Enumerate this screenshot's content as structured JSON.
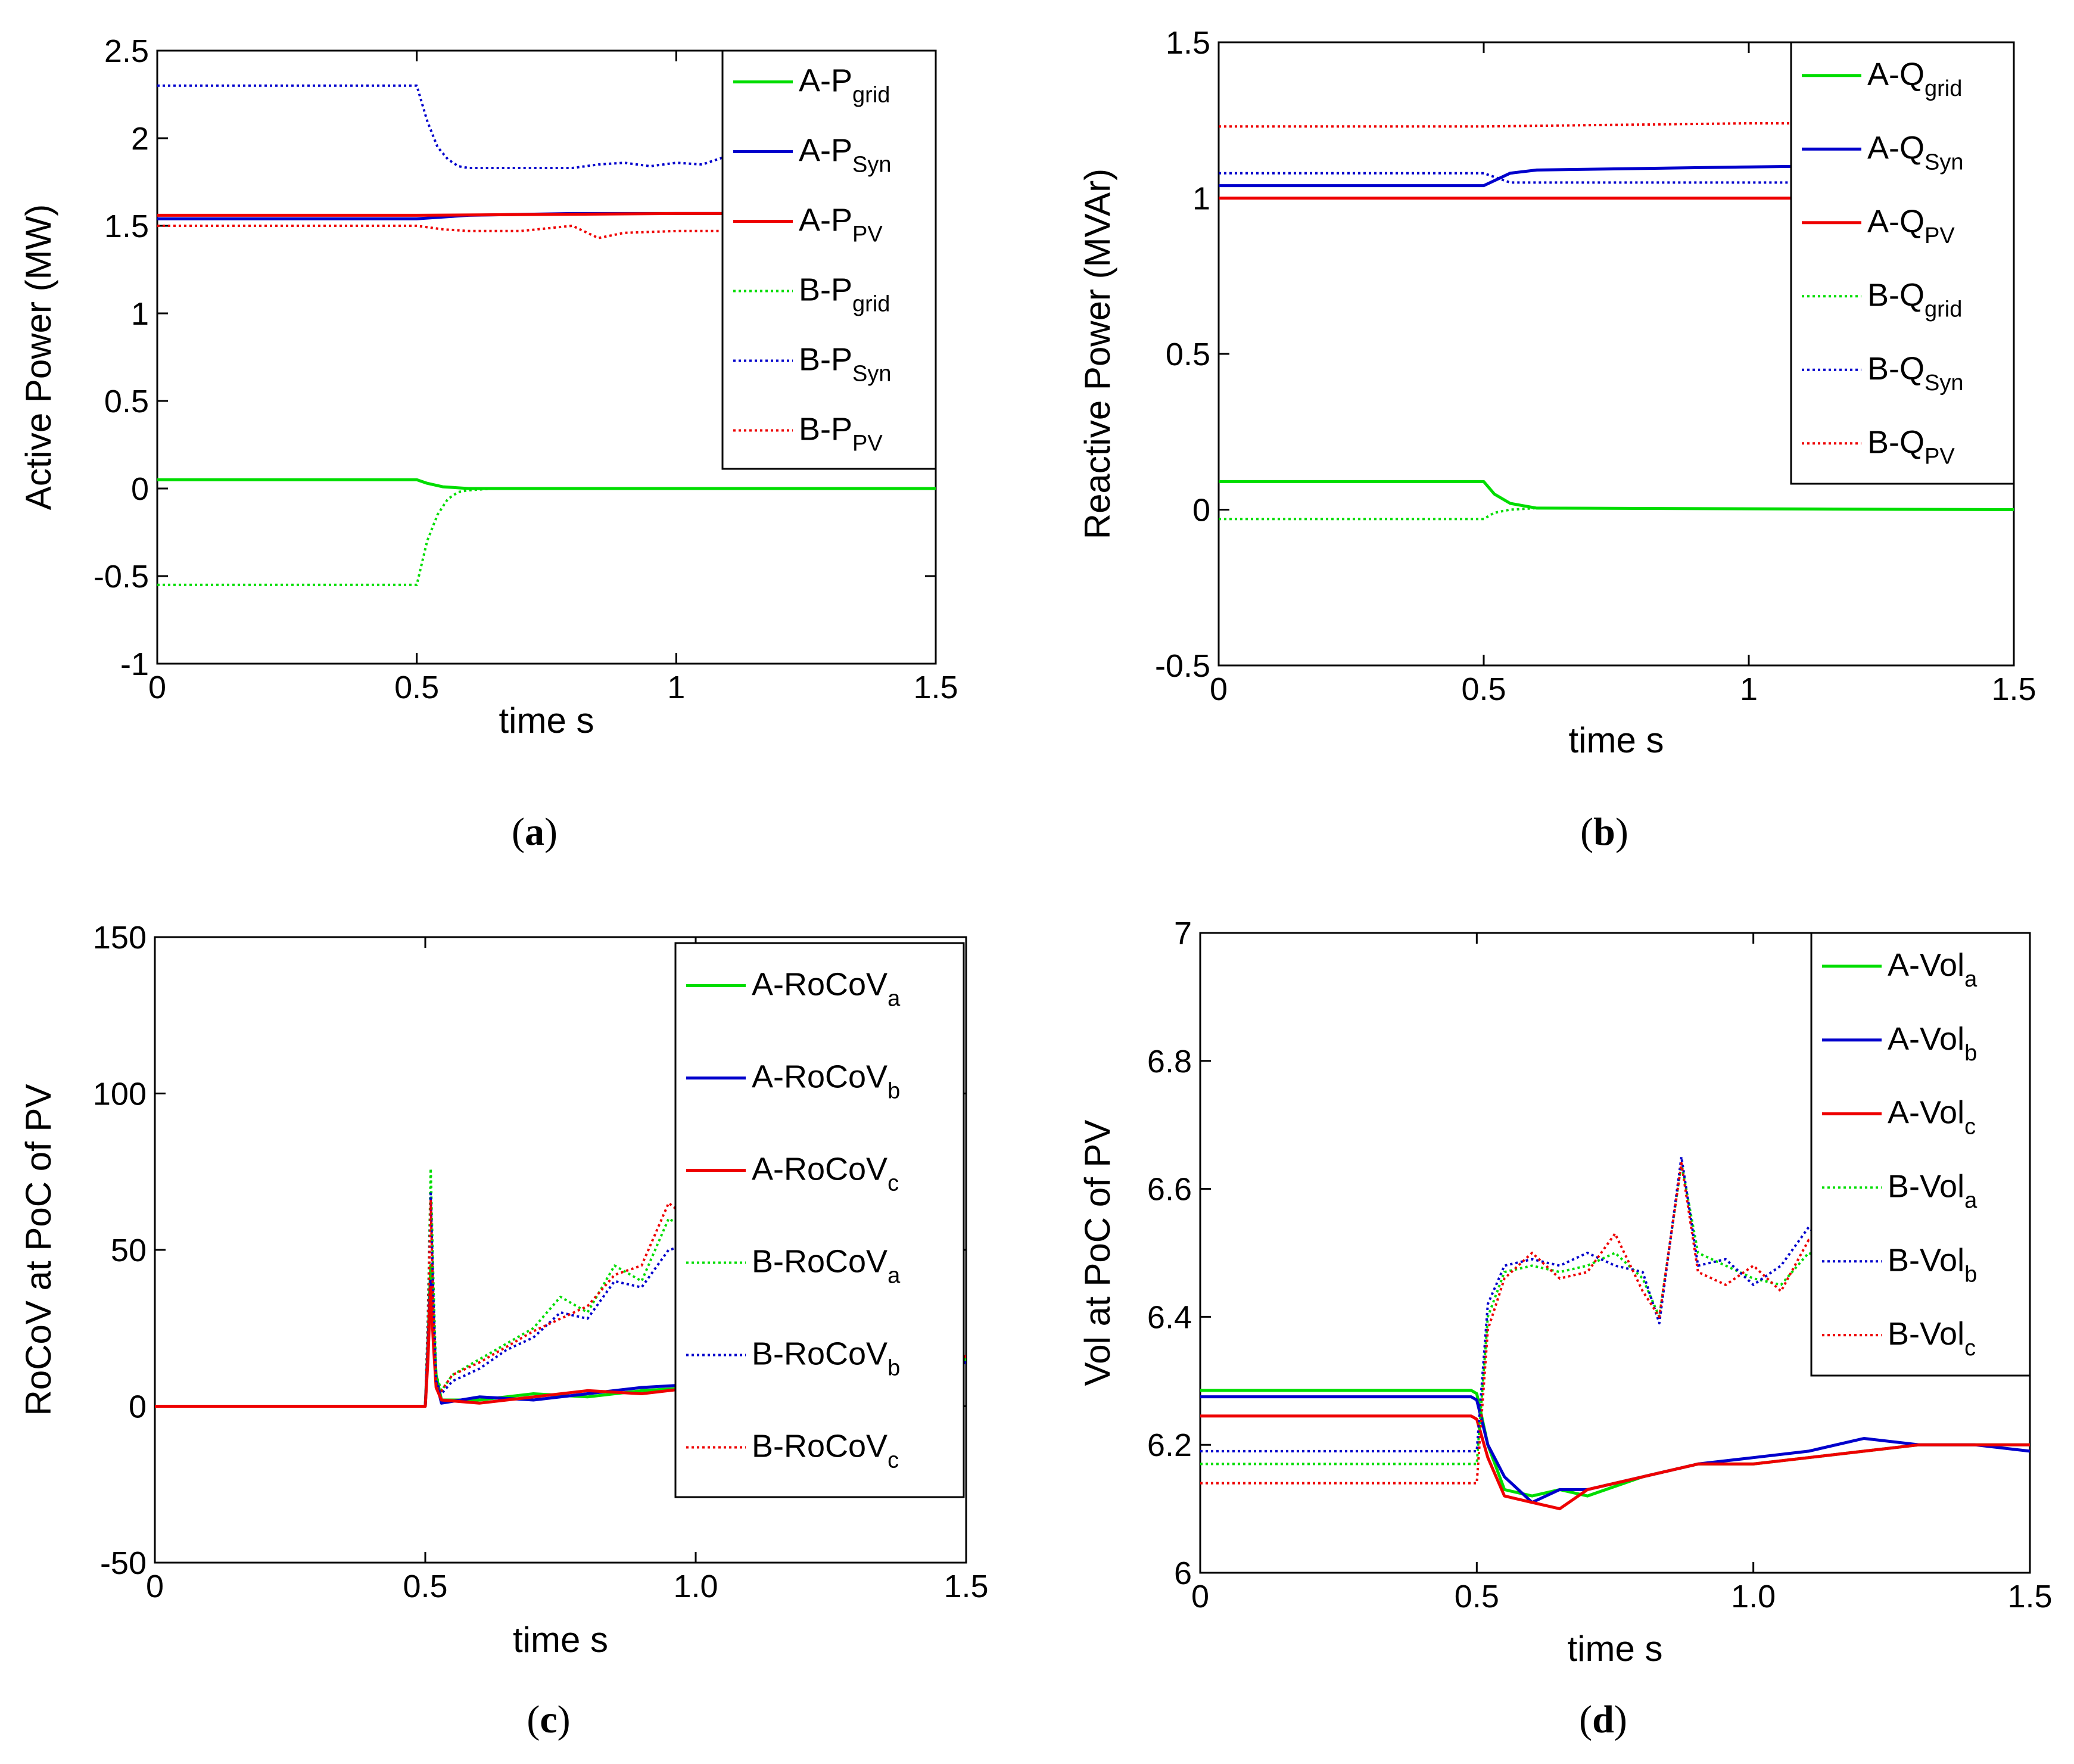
{
  "chart_data": [
    {
      "panel_label": "(a)",
      "label_parts": {
        "open": "(",
        "letter": "a",
        "close": ")"
      },
      "type": "line",
      "xlabel": "time s",
      "ylabel": "Active Power (MW)",
      "xlim": [
        0,
        1.5
      ],
      "ylim": [
        -1,
        2.5
      ],
      "xticks": [
        0,
        0.5,
        1,
        1.5
      ],
      "xtick_labels": [
        "0",
        "0.5",
        "1",
        "1.5"
      ],
      "yticks": [
        -1,
        -0.5,
        0,
        0.5,
        1,
        1.5,
        2,
        2.5
      ],
      "ytick_labels": [
        "-1",
        "-0.5",
        "0",
        "0.5",
        "1",
        "1.5",
        "2",
        "2.5"
      ],
      "grid": false,
      "legend_position": "top-right",
      "series": [
        {
          "name": "A-Pgrid",
          "name_base": "A-P",
          "name_sub": "grid",
          "color": "#00dd00",
          "style": "solid",
          "x": [
            0,
            0.49,
            0.5,
            0.52,
            0.55,
            0.6,
            1.5
          ],
          "y": [
            0.05,
            0.05,
            0.05,
            0.03,
            0.01,
            0,
            0
          ]
        },
        {
          "name": "A-PSyn",
          "name_base": "A-P",
          "name_sub": "Syn",
          "color": "#0000cc",
          "style": "solid",
          "x": [
            0,
            0.5,
            0.6,
            0.8,
            1.0,
            1.5
          ],
          "y": [
            1.54,
            1.54,
            1.56,
            1.57,
            1.57,
            1.57
          ]
        },
        {
          "name": "A-PPV",
          "name_base": "A-P",
          "name_sub": "PV",
          "color": "#ee0000",
          "style": "solid",
          "x": [
            0,
            0.5,
            1.0,
            1.5
          ],
          "y": [
            1.56,
            1.56,
            1.57,
            1.57
          ]
        },
        {
          "name": "B-Pgrid",
          "name_base": "B-P",
          "name_sub": "grid",
          "color": "#00dd00",
          "style": "dotted",
          "x": [
            0,
            0.49,
            0.5,
            0.52,
            0.54,
            0.56,
            0.58,
            0.6,
            0.65,
            1.5
          ],
          "y": [
            -0.55,
            -0.55,
            -0.55,
            -0.3,
            -0.15,
            -0.06,
            -0.02,
            -0.01,
            0,
            0
          ]
        },
        {
          "name": "B-PSyn",
          "name_base": "B-P",
          "name_sub": "Syn",
          "color": "#0000cc",
          "style": "dotted",
          "x": [
            0,
            0.49,
            0.5,
            0.52,
            0.54,
            0.56,
            0.58,
            0.6,
            0.7,
            0.8,
            0.85,
            0.9,
            0.95,
            1.0,
            1.05,
            1.1,
            1.2,
            1.3,
            1.4,
            1.5
          ],
          "y": [
            2.3,
            2.3,
            2.3,
            2.1,
            1.95,
            1.88,
            1.84,
            1.83,
            1.83,
            1.83,
            1.85,
            1.86,
            1.84,
            1.86,
            1.85,
            1.9,
            1.88,
            1.9,
            1.9,
            1.9
          ]
        },
        {
          "name": "B-PPV",
          "name_base": "B-P",
          "name_sub": "PV",
          "color": "#ee0000",
          "style": "dotted",
          "x": [
            0,
            0.49,
            0.5,
            0.55,
            0.6,
            0.7,
            0.8,
            0.85,
            0.9,
            1.0,
            1.1,
            1.2,
            1.3,
            1.4,
            1.5
          ],
          "y": [
            1.5,
            1.5,
            1.5,
            1.48,
            1.47,
            1.47,
            1.5,
            1.43,
            1.46,
            1.47,
            1.47,
            1.47,
            1.46,
            1.47,
            1.47
          ]
        }
      ]
    },
    {
      "panel_label": "(b)",
      "label_parts": {
        "open": "(",
        "letter": "b",
        "close": ")"
      },
      "type": "line",
      "xlabel": "time s",
      "ylabel": "Reactive Power (MVAr)",
      "xlim": [
        0,
        1.5
      ],
      "ylim": [
        -0.5,
        1.5
      ],
      "xticks": [
        0,
        0.5,
        1,
        1.5
      ],
      "xtick_labels": [
        "0",
        "0.5",
        "1",
        "1.5"
      ],
      "yticks": [
        -0.5,
        0,
        0.5,
        1,
        1.5
      ],
      "ytick_labels": [
        "-0.5",
        "0",
        "0.5",
        "1",
        "1.5"
      ],
      "grid": false,
      "legend_position": "top-right",
      "series": [
        {
          "name": "A-Qgrid",
          "name_base": "A-Q",
          "name_sub": "grid",
          "color": "#00dd00",
          "style": "solid",
          "x": [
            0,
            0.49,
            0.5,
            0.52,
            0.55,
            0.6,
            1.5
          ],
          "y": [
            0.09,
            0.09,
            0.09,
            0.05,
            0.02,
            0.005,
            0
          ]
        },
        {
          "name": "A-QSyn",
          "name_base": "A-Q",
          "name_sub": "Syn",
          "color": "#0000cc",
          "style": "solid",
          "x": [
            0,
            0.49,
            0.5,
            0.55,
            0.6,
            1.0,
            1.5
          ],
          "y": [
            1.04,
            1.04,
            1.04,
            1.08,
            1.09,
            1.1,
            1.11
          ]
        },
        {
          "name": "A-QPV",
          "name_base": "A-Q",
          "name_sub": "PV",
          "color": "#ee0000",
          "style": "solid",
          "x": [
            0,
            0.5,
            1.0,
            1.5
          ],
          "y": [
            1.0,
            1.0,
            1.0,
            1.0
          ]
        },
        {
          "name": "B-Qgrid",
          "name_base": "B-Q",
          "name_sub": "grid",
          "color": "#00dd00",
          "style": "dotted",
          "x": [
            0,
            0.49,
            0.5,
            0.52,
            0.55,
            0.6,
            1.5
          ],
          "y": [
            -0.03,
            -0.03,
            -0.03,
            -0.01,
            0.0,
            0.005,
            0
          ]
        },
        {
          "name": "B-QSyn",
          "name_base": "B-Q",
          "name_sub": "Syn",
          "color": "#0000cc",
          "style": "dotted",
          "x": [
            0,
            0.49,
            0.5,
            0.55,
            0.6,
            1.0,
            1.5
          ],
          "y": [
            1.08,
            1.08,
            1.08,
            1.05,
            1.05,
            1.05,
            1.05
          ]
        },
        {
          "name": "B-QPV",
          "name_base": "B-Q",
          "name_sub": "PV",
          "color": "#ee0000",
          "style": "dotted",
          "x": [
            0,
            0.5,
            1.0,
            1.5
          ],
          "y": [
            1.23,
            1.23,
            1.24,
            1.24
          ]
        }
      ]
    },
    {
      "panel_label": "(c)",
      "label_parts": {
        "open": "(",
        "letter": "c",
        "close": ")"
      },
      "type": "line",
      "xlabel": "time s",
      "ylabel": "RoCoV at PoC of PV",
      "xlim": [
        0,
        1.5
      ],
      "ylim": [
        -50,
        150
      ],
      "xticks": [
        0,
        0.5,
        1.0,
        1.5
      ],
      "xtick_labels": [
        "0",
        "0.5",
        "1.0",
        "1.5"
      ],
      "yticks": [
        -50,
        0,
        50,
        100,
        150
      ],
      "ytick_labels": [
        "-50",
        "0",
        "50",
        "100",
        "150"
      ],
      "grid": false,
      "legend_position": "top-right",
      "series": [
        {
          "name": "A-RoCoVa",
          "name_base": "A-RoCoV",
          "name_sub": "a",
          "color": "#00dd00",
          "style": "solid",
          "x": [
            0,
            0.3,
            0.5,
            0.505,
            0.51,
            0.515,
            0.52,
            0.53,
            0.6,
            0.7,
            0.8,
            0.9,
            1.0,
            1.1,
            1.2,
            1.3,
            1.4,
            1.5
          ],
          "y": [
            0,
            0,
            0,
            20,
            45,
            25,
            10,
            2,
            2,
            4,
            3,
            5,
            6,
            8,
            10,
            8,
            12,
            15
          ]
        },
        {
          "name": "A-RoCoVb",
          "name_base": "A-RoCoV",
          "name_sub": "b",
          "color": "#0000cc",
          "style": "solid",
          "x": [
            0,
            0.3,
            0.5,
            0.505,
            0.51,
            0.515,
            0.52,
            0.53,
            0.6,
            0.7,
            0.8,
            0.9,
            1.0,
            1.1,
            1.2,
            1.3,
            1.4,
            1.5
          ],
          "y": [
            0,
            0,
            0,
            18,
            40,
            22,
            8,
            1,
            3,
            2,
            4,
            6,
            7,
            6,
            9,
            10,
            11,
            14
          ]
        },
        {
          "name": "A-RoCoVc",
          "name_base": "A-RoCoV",
          "name_sub": "c",
          "color": "#ee0000",
          "style": "solid",
          "x": [
            0,
            0.3,
            0.5,
            0.505,
            0.51,
            0.515,
            0.52,
            0.53,
            0.6,
            0.7,
            0.8,
            0.9,
            1.0,
            1.1,
            1.2,
            1.3,
            1.4,
            1.5
          ],
          "y": [
            0,
            0,
            0,
            15,
            38,
            20,
            6,
            2,
            1,
            3,
            5,
            4,
            6,
            8,
            9,
            11,
            12,
            16
          ]
        },
        {
          "name": "B-RoCoVa",
          "name_base": "B-RoCoV",
          "name_sub": "a",
          "color": "#00dd00",
          "style": "dotted",
          "x": [
            0,
            0.3,
            0.49,
            0.5,
            0.505,
            0.51,
            0.515,
            0.52,
            0.53,
            0.55,
            0.6,
            0.65,
            0.7,
            0.75,
            0.8,
            0.85,
            0.9,
            0.95,
            1.0
          ],
          "y": [
            0,
            0,
            0,
            0,
            30,
            76,
            40,
            10,
            5,
            10,
            15,
            20,
            25,
            35,
            30,
            45,
            40,
            60,
            55
          ]
        },
        {
          "name": "B-RoCoVb",
          "name_base": "B-RoCoV",
          "name_sub": "b",
          "color": "#0000cc",
          "style": "dotted",
          "x": [
            0,
            0.3,
            0.49,
            0.5,
            0.505,
            0.51,
            0.515,
            0.52,
            0.53,
            0.55,
            0.6,
            0.65,
            0.7,
            0.75,
            0.8,
            0.85,
            0.9,
            0.95,
            1.0
          ],
          "y": [
            0,
            0,
            0,
            0,
            28,
            68,
            35,
            8,
            4,
            8,
            12,
            18,
            22,
            30,
            28,
            40,
            38,
            50,
            52
          ]
        },
        {
          "name": "B-RoCoVc",
          "name_base": "B-RoCoV",
          "name_sub": "c",
          "color": "#ee0000",
          "style": "dotted",
          "x": [
            0,
            0.3,
            0.49,
            0.5,
            0.505,
            0.51,
            0.515,
            0.52,
            0.53,
            0.55,
            0.6,
            0.65,
            0.7,
            0.75,
            0.8,
            0.85,
            0.9,
            0.95,
            1.0
          ],
          "y": [
            0,
            0,
            0,
            0,
            25,
            66,
            30,
            6,
            5,
            10,
            14,
            19,
            24,
            28,
            32,
            42,
            45,
            65,
            58
          ]
        }
      ]
    },
    {
      "panel_label": "(d)",
      "label_parts": {
        "open": "(",
        "letter": "d",
        "close": ")"
      },
      "type": "line",
      "xlabel": "time s",
      "ylabel": "Vol at PoC of PV",
      "xlim": [
        0,
        1.5
      ],
      "ylim": [
        6,
        7
      ],
      "xticks": [
        0,
        0.5,
        1.0,
        1.5
      ],
      "xtick_labels": [
        "0",
        "0.5",
        "1.0",
        "1.5"
      ],
      "yticks": [
        6,
        6.2,
        6.4,
        6.6,
        6.8,
        7
      ],
      "ytick_labels": [
        "6",
        "6.2",
        "6.4",
        "6.6",
        "6.8",
        "7"
      ],
      "grid": false,
      "legend_position": "top-right",
      "series": [
        {
          "name": "A-Vola",
          "name_base": "A-Vol",
          "name_sub": "a",
          "color": "#00dd00",
          "style": "solid",
          "x": [
            0,
            0.49,
            0.5,
            0.52,
            0.55,
            0.6,
            0.65,
            0.7,
            0.8,
            0.9,
            1.0,
            1.1,
            1.2,
            1.3,
            1.4,
            1.5
          ],
          "y": [
            6.285,
            6.285,
            6.28,
            6.2,
            6.13,
            6.12,
            6.13,
            6.12,
            6.15,
            6.17,
            6.17,
            6.18,
            6.19,
            6.2,
            6.2,
            6.2
          ]
        },
        {
          "name": "A-Volb",
          "name_base": "A-Vol",
          "name_sub": "b",
          "color": "#0000cc",
          "style": "solid",
          "x": [
            0,
            0.49,
            0.5,
            0.52,
            0.55,
            0.6,
            0.65,
            0.7,
            0.8,
            0.9,
            1.0,
            1.1,
            1.2,
            1.3,
            1.4,
            1.5
          ],
          "y": [
            6.275,
            6.275,
            6.27,
            6.2,
            6.15,
            6.11,
            6.13,
            6.13,
            6.15,
            6.17,
            6.18,
            6.19,
            6.21,
            6.2,
            6.2,
            6.19
          ]
        },
        {
          "name": "A-Volc",
          "name_base": "A-Vol",
          "name_sub": "c",
          "color": "#ee0000",
          "style": "solid",
          "x": [
            0,
            0.49,
            0.5,
            0.52,
            0.55,
            0.6,
            0.65,
            0.7,
            0.8,
            0.9,
            1.0,
            1.1,
            1.2,
            1.3,
            1.4,
            1.5
          ],
          "y": [
            6.245,
            6.245,
            6.24,
            6.18,
            6.12,
            6.11,
            6.1,
            6.13,
            6.15,
            6.17,
            6.17,
            6.18,
            6.19,
            6.2,
            6.2,
            6.2
          ]
        },
        {
          "name": "B-Vola",
          "name_base": "B-Vol",
          "name_sub": "a",
          "color": "#00dd00",
          "style": "dotted",
          "x": [
            0,
            0.49,
            0.5,
            0.52,
            0.55,
            0.6,
            0.65,
            0.7,
            0.75,
            0.8,
            0.83,
            0.87,
            0.9,
            0.95,
            1.0,
            1.05,
            1.1,
            1.2,
            1.3,
            1.4,
            1.5
          ],
          "y": [
            6.17,
            6.17,
            6.17,
            6.4,
            6.47,
            6.48,
            6.47,
            6.48,
            6.5,
            6.46,
            6.4,
            6.64,
            6.5,
            6.48,
            6.46,
            6.45,
            6.5,
            6.46,
            6.45,
            6.43,
            6.4
          ]
        },
        {
          "name": "B-Volb",
          "name_base": "B-Vol",
          "name_sub": "b",
          "color": "#0000cc",
          "style": "dotted",
          "x": [
            0,
            0.49,
            0.5,
            0.52,
            0.55,
            0.6,
            0.65,
            0.7,
            0.75,
            0.8,
            0.83,
            0.87,
            0.9,
            0.95,
            1.0,
            1.05,
            1.1,
            1.2,
            1.3,
            1.4,
            1.5
          ],
          "y": [
            6.19,
            6.19,
            6.19,
            6.42,
            6.48,
            6.49,
            6.48,
            6.5,
            6.48,
            6.47,
            6.39,
            6.65,
            6.48,
            6.49,
            6.45,
            6.48,
            6.54,
            6.45,
            6.47,
            6.44,
            6.42
          ]
        },
        {
          "name": "B-Volc",
          "name_base": "B-Vol",
          "name_sub": "c",
          "color": "#ee0000",
          "style": "dotted",
          "x": [
            0,
            0.49,
            0.5,
            0.52,
            0.55,
            0.6,
            0.65,
            0.7,
            0.75,
            0.8,
            0.83,
            0.87,
            0.9,
            0.95,
            1.0,
            1.05,
            1.1,
            1.2,
            1.3,
            1.4,
            1.5
          ],
          "y": [
            6.14,
            6.14,
            6.14,
            6.38,
            6.46,
            6.5,
            6.46,
            6.47,
            6.53,
            6.44,
            6.4,
            6.64,
            6.47,
            6.45,
            6.48,
            6.44,
            6.52,
            6.46,
            6.44,
            6.44,
            6.42
          ]
        }
      ]
    }
  ]
}
